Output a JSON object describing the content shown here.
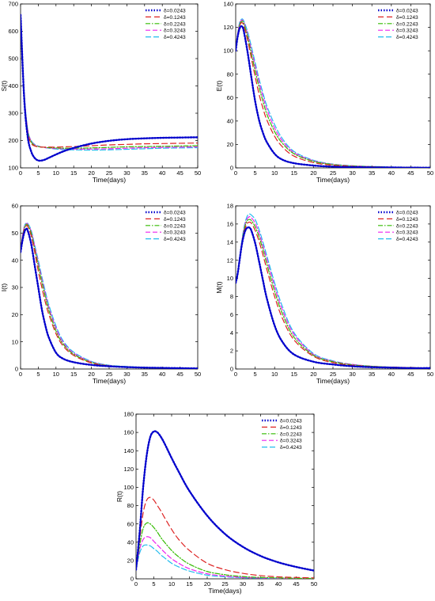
{
  "legend_labels": [
    "δ=0.0243",
    "δ=0.1243",
    "δ=0.2243",
    "δ=0.3243",
    "δ=0.4243"
  ],
  "series_styles": [
    {
      "color": "#0000cc",
      "dash": "1.5,2",
      "width": 2.4
    },
    {
      "color": "#dd2222",
      "dash": "7,4",
      "width": 1.2
    },
    {
      "color": "#33bb00",
      "dash": "6,2,1.5,2",
      "width": 1.2
    },
    {
      "color": "#ee22ee",
      "dash": "6,3",
      "width": 1.2
    },
    {
      "color": "#22bbee",
      "dash": "7,3",
      "width": 1.2
    }
  ],
  "chart_data": [
    {
      "type": "line",
      "xlabel": "Time(days)",
      "ylabel": "S(t)",
      "xlim": [
        0,
        50
      ],
      "ylim": [
        100,
        700
      ],
      "xticks": [
        0,
        5,
        10,
        15,
        20,
        25,
        30,
        35,
        40,
        45,
        50
      ],
      "yticks": [
        100,
        200,
        300,
        400,
        500,
        600,
        700
      ],
      "legend": "top-right",
      "grid": false,
      "x": [
        0,
        1,
        2,
        3,
        4,
        5,
        6,
        7,
        8,
        10,
        12,
        15,
        20,
        25,
        30,
        35,
        40,
        45,
        50
      ],
      "series": [
        {
          "name": "δ=0.0243",
          "values": [
            660,
            360,
            215,
            160,
            136,
            127,
            127,
            131,
            137,
            149,
            160,
            173,
            189,
            199,
            205,
            208,
            210,
            211,
            212
          ]
        },
        {
          "name": "δ=0.1243",
          "values": [
            660,
            370,
            230,
            190,
            180,
            177,
            176,
            176,
            176,
            176,
            177,
            178,
            181,
            184,
            186,
            188,
            189,
            190,
            191
          ]
        },
        {
          "name": "δ=0.2243",
          "values": [
            660,
            375,
            235,
            195,
            182,
            178,
            176,
            175,
            174,
            173,
            172,
            172,
            173,
            175,
            177,
            178,
            179,
            180,
            181
          ]
        },
        {
          "name": "δ=0.3243",
          "values": [
            660,
            380,
            240,
            198,
            184,
            179,
            176,
            174,
            173,
            171,
            170,
            169,
            169,
            170,
            172,
            174,
            175,
            176,
            177
          ]
        },
        {
          "name": "δ=0.4243",
          "values": [
            660,
            382,
            242,
            200,
            186,
            180,
            176,
            174,
            172,
            169,
            167,
            166,
            165,
            166,
            168,
            170,
            172,
            173,
            174
          ]
        }
      ]
    },
    {
      "type": "line",
      "xlabel": "Time(days)",
      "ylabel": "E(t)",
      "xlim": [
        0,
        50
      ],
      "ylim": [
        0,
        140
      ],
      "xticks": [
        0,
        5,
        10,
        15,
        20,
        25,
        30,
        35,
        40,
        45,
        50
      ],
      "yticks": [
        0,
        20,
        40,
        60,
        80,
        100,
        120,
        140
      ],
      "legend": "top-right",
      "grid": false,
      "x": [
        0,
        0.5,
        1,
        1.5,
        2,
        3,
        4,
        5,
        6,
        7,
        8,
        10,
        12,
        15,
        20,
        25,
        30,
        35,
        40,
        45,
        50
      ],
      "series": [
        {
          "name": "δ=0.0243",
          "values": [
            100,
            112,
            119,
            121,
            118,
            100,
            78,
            57,
            41,
            30,
            22,
            12,
            7,
            4,
            2,
            1,
            0.6,
            0.4,
            0.3,
            0.2,
            0.1
          ]
        },
        {
          "name": "δ=0.1243",
          "values": [
            100,
            113,
            121,
            124,
            122,
            110,
            94,
            78,
            63,
            51,
            41,
            27,
            18,
            10,
            4.5,
            2.2,
            1.2,
            0.8,
            0.5,
            0.3,
            0.2
          ]
        },
        {
          "name": "δ=0.2243",
          "values": [
            100,
            113,
            122,
            125,
            124,
            113,
            98,
            83,
            69,
            57,
            46,
            31,
            21,
            12,
            5.5,
            2.8,
            1.5,
            1,
            0.6,
            0.4,
            0.3
          ]
        },
        {
          "name": "δ=0.3243",
          "values": [
            100,
            114,
            123,
            126,
            125,
            115,
            101,
            87,
            73,
            61,
            50,
            34,
            23,
            13,
            6,
            3,
            1.7,
            1.1,
            0.7,
            0.5,
            0.3
          ]
        },
        {
          "name": "δ=0.4243",
          "values": [
            100,
            114,
            124,
            127,
            126,
            117,
            104,
            90,
            76,
            64,
            53,
            37,
            25,
            14,
            6.5,
            3.2,
            1.8,
            1.2,
            0.8,
            0.5,
            0.3
          ]
        }
      ]
    },
    {
      "type": "line",
      "xlabel": "Time(days)",
      "ylabel": "I(t)",
      "xlim": [
        0,
        50
      ],
      "ylim": [
        0,
        60
      ],
      "xticks": [
        0,
        5,
        10,
        15,
        20,
        25,
        30,
        35,
        40,
        45,
        50
      ],
      "yticks": [
        0,
        10,
        20,
        30,
        40,
        50,
        60
      ],
      "legend": "top-right",
      "grid": false,
      "x": [
        0,
        0.5,
        1,
        1.5,
        2,
        3,
        4,
        5,
        6,
        7,
        8,
        10,
        12,
        15,
        20,
        25,
        30,
        35,
        40,
        45,
        50
      ],
      "series": [
        {
          "name": "δ=0.0243",
          "values": [
            43,
            47,
            50,
            51.5,
            51,
            46,
            38,
            30,
            22,
            16,
            11.5,
            6,
            3.8,
            2.5,
            1.5,
            1,
            0.7,
            0.5,
            0.4,
            0.3,
            0.2
          ]
        },
        {
          "name": "δ=0.1243",
          "values": [
            43,
            48,
            51,
            52.5,
            52.5,
            49,
            43,
            36,
            30,
            24.5,
            20,
            13,
            8.5,
            5,
            2.2,
            1.1,
            0.7,
            0.5,
            0.4,
            0.3,
            0.2
          ]
        },
        {
          "name": "δ=0.2243",
          "values": [
            43,
            48,
            51.5,
            53,
            53,
            50,
            44,
            38,
            32,
            26.5,
            21.5,
            14,
            9.2,
            5.4,
            2.4,
            1.2,
            0.8,
            0.5,
            0.4,
            0.3,
            0.2
          ]
        },
        {
          "name": "δ=0.3243",
          "values": [
            43,
            48.5,
            52,
            53.3,
            53.3,
            50.5,
            45,
            39,
            33,
            27.5,
            22.5,
            15,
            9.8,
            5.8,
            2.6,
            1.3,
            0.8,
            0.5,
            0.4,
            0.3,
            0.2
          ]
        },
        {
          "name": "δ=0.4243",
          "values": [
            43,
            48.5,
            52.2,
            53.6,
            53.6,
            51,
            45.5,
            40,
            34,
            28.5,
            23.5,
            15.8,
            10.4,
            6.2,
            2.8,
            1.4,
            0.9,
            0.6,
            0.4,
            0.3,
            0.2
          ]
        }
      ]
    },
    {
      "type": "line",
      "xlabel": "Time(days)",
      "ylabel": "M(t)",
      "xlim": [
        0,
        50
      ],
      "ylim": [
        0,
        18
      ],
      "xticks": [
        0,
        5,
        10,
        15,
        20,
        25,
        30,
        35,
        40,
        45,
        50
      ],
      "yticks": [
        0,
        2,
        4,
        6,
        8,
        10,
        12,
        14,
        16,
        18
      ],
      "legend": "top-right",
      "grid": false,
      "x": [
        0,
        0.5,
        1,
        1.5,
        2,
        2.5,
        3,
        3.5,
        4,
        5,
        6,
        7,
        8,
        10,
        12,
        15,
        20,
        25,
        30,
        35,
        40,
        45,
        50
      ],
      "series": [
        {
          "name": "δ=0.0243",
          "values": [
            9.5,
            10.5,
            12,
            13.5,
            14.6,
            15.3,
            15.6,
            15.6,
            15.3,
            13.9,
            11.9,
            9.8,
            7.8,
            4.8,
            3,
            1.6,
            0.8,
            0.5,
            0.3,
            0.2,
            0.15,
            0.1,
            0.1
          ]
        },
        {
          "name": "δ=0.1243",
          "values": [
            9.5,
            10.5,
            12,
            13.6,
            14.8,
            15.6,
            16.1,
            16.2,
            16.1,
            15.3,
            14.1,
            12.6,
            11,
            8,
            5.6,
            3.2,
            1.4,
            0.7,
            0.4,
            0.25,
            0.2,
            0.15,
            0.1
          ]
        },
        {
          "name": "δ=0.2243",
          "values": [
            9.5,
            10.5,
            12.1,
            13.7,
            15,
            15.9,
            16.4,
            16.5,
            16.4,
            15.7,
            14.6,
            13.2,
            11.6,
            8.6,
            6.1,
            3.5,
            1.5,
            0.8,
            0.45,
            0.3,
            0.2,
            0.15,
            0.1
          ]
        },
        {
          "name": "δ=0.3243",
          "values": [
            9.5,
            10.5,
            12.1,
            13.8,
            15.1,
            16.1,
            16.6,
            16.8,
            16.7,
            16.1,
            15,
            13.6,
            12.1,
            9.1,
            6.5,
            3.8,
            1.6,
            0.85,
            0.5,
            0.3,
            0.2,
            0.15,
            0.1
          ]
        },
        {
          "name": "δ=0.4243",
          "values": [
            9.5,
            10.5,
            12.2,
            13.9,
            15.3,
            16.3,
            16.9,
            17.1,
            17,
            16.5,
            15.4,
            14,
            12.5,
            9.5,
            6.9,
            4,
            1.7,
            0.9,
            0.5,
            0.3,
            0.2,
            0.15,
            0.1
          ]
        }
      ]
    },
    {
      "type": "line",
      "xlabel": "Time(days)",
      "ylabel": "R(t)",
      "xlim": [
        0,
        50
      ],
      "ylim": [
        0,
        180
      ],
      "xticks": [
        0,
        5,
        10,
        15,
        20,
        25,
        30,
        35,
        40,
        45,
        50
      ],
      "yticks": [
        0,
        20,
        40,
        60,
        80,
        100,
        120,
        140,
        160,
        180
      ],
      "legend": "top-right",
      "grid": false,
      "x": [
        0,
        1,
        2,
        3,
        4,
        5,
        6,
        7,
        8,
        10,
        12,
        15,
        20,
        25,
        30,
        35,
        40,
        45,
        50
      ],
      "series": [
        {
          "name": "δ=0.0243",
          "values": [
            10,
            50,
            100,
            135,
            155,
            161,
            160,
            155,
            148,
            132,
            117,
            96,
            69,
            49,
            35,
            25,
            18,
            13,
            9
          ]
        },
        {
          "name": "δ=0.1243",
          "values": [
            10,
            42,
            72,
            86,
            89,
            86,
            80,
            74,
            67,
            54,
            43,
            31,
            17,
            10,
            6,
            3.5,
            2.2,
            1.5,
            1
          ]
        },
        {
          "name": "δ=0.2243",
          "values": [
            10,
            36,
            55,
            61,
            60,
            56,
            51,
            45,
            40,
            31,
            24,
            16,
            8,
            4.5,
            2.5,
            1.5,
            1,
            0.6,
            0.4
          ]
        },
        {
          "name": "δ=0.3243",
          "values": [
            10,
            32,
            43,
            46,
            45,
            41,
            37,
            33,
            29,
            22,
            17,
            11,
            5.5,
            3,
            1.6,
            1,
            0.6,
            0.4,
            0.3
          ]
        },
        {
          "name": "δ=0.4243",
          "values": [
            10,
            28,
            36,
            37,
            36,
            33,
            30,
            26,
            23,
            17,
            13,
            8.5,
            4,
            2.2,
            1.2,
            0.7,
            0.4,
            0.3,
            0.2
          ]
        }
      ]
    }
  ]
}
